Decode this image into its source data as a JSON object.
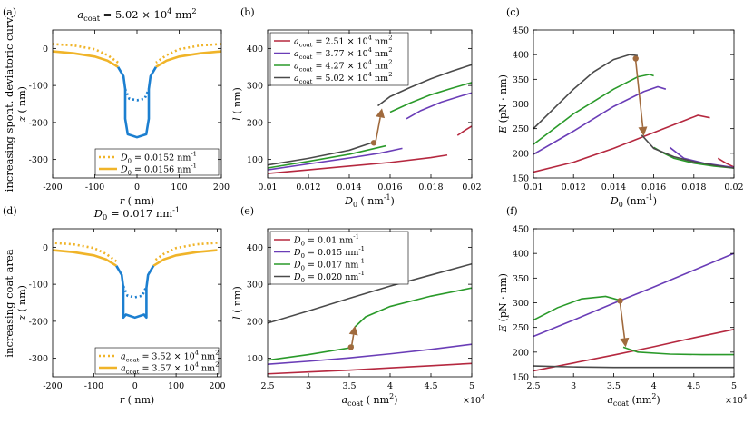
{
  "row_labels": [
    "increasing spont. deviatoric curv.",
    "increasing coat area"
  ],
  "colors": {
    "red": "#b5283f",
    "purple": "#6a3db7",
    "green": "#2a9a2a",
    "dark": "#4a4a4a",
    "blue": "#1c7fd0",
    "gold": "#f0b429",
    "arrow": "#a06a3d"
  },
  "chart_data": [
    {
      "panel": "(a)",
      "type": "line",
      "title": "a_coat = 5.02 × 10^4 nm^2",
      "xlabel": "r ( nm)",
      "ylabel": "z ( nm)",
      "xlim": [
        -200,
        200
      ],
      "ylim": [
        -350,
        50
      ],
      "xticks": [
        "-200",
        "-100",
        "0",
        "100",
        "200"
      ],
      "yticks": [
        "0",
        "-100",
        "-200",
        "-300"
      ],
      "legend": [
        {
          "label": "D_0 = 0.0152 nm^-1",
          "style": "dotted",
          "color": "#f0b429"
        },
        {
          "label": "D_0 = 0.0156 nm^-1",
          "style": "solid",
          "color": "#f0b429"
        }
      ],
      "legend_position": "bottom-right"
    },
    {
      "panel": "(b)",
      "type": "line",
      "xlabel": "D_0 ( nm^-1)",
      "ylabel": "l ( nm)",
      "xlim": [
        0.01,
        0.02
      ],
      "ylim": [
        50,
        450
      ],
      "xticks": [
        "0.01",
        "0.012",
        "0.014",
        "0.016",
        "0.018",
        "0.02"
      ],
      "yticks": [
        "100",
        "200",
        "300",
        "400"
      ],
      "series": [
        {
          "name": "a_coat = 2.51 × 10^4 nm^2",
          "color": "#b5283f",
          "segments": [
            {
              "x": [
                0.01,
                0.012,
                0.014,
                0.016,
                0.018,
                0.0188
              ],
              "y": [
                62,
                72,
                82,
                92,
                105,
                112
              ]
            },
            {
              "x": [
                0.0193,
                0.0197,
                0.02
              ],
              "y": [
                165,
                180,
                190
              ]
            }
          ]
        },
        {
          "name": "a_coat = 3.77 × 10^4 nm^2",
          "color": "#6a3db7",
          "segments": [
            {
              "x": [
                0.01,
                0.012,
                0.014,
                0.0155,
                0.0166
              ],
              "y": [
                72,
                88,
                104,
                117,
                130
              ]
            },
            {
              "x": [
                0.0168,
                0.0175,
                0.0185,
                0.0195,
                0.02
              ],
              "y": [
                210,
                232,
                255,
                272,
                280
              ]
            }
          ]
        },
        {
          "name": "a_coat = 4.27 × 10^4 nm^2",
          "color": "#2a9a2a",
          "segments": [
            {
              "x": [
                0.01,
                0.012,
                0.014,
                0.0158
              ],
              "y": [
                77,
                95,
                114,
                137
              ]
            },
            {
              "x": [
                0.016,
                0.017,
                0.018,
                0.019,
                0.02
              ],
              "y": [
                228,
                253,
                275,
                292,
                308
              ]
            }
          ]
        },
        {
          "name": "a_coat = 5.02 × 10^4 nm^2",
          "color": "#4a4a4a",
          "segments": [
            {
              "x": [
                0.01,
                0.012,
                0.014,
                0.0152
              ],
              "y": [
                85,
                103,
                125,
                147
              ]
            },
            {
              "x": [
                0.0154,
                0.016,
                0.017,
                0.018,
                0.019,
                0.02
              ],
              "y": [
                245,
                270,
                295,
                318,
                338,
                356
              ]
            }
          ]
        }
      ],
      "marker": {
        "x": 0.0152,
        "y": 145
      },
      "arrow": {
        "from": [
          0.0153,
          150
        ],
        "to": [
          0.0156,
          238
        ]
      },
      "legend_position": "top-left"
    },
    {
      "panel": "(c)",
      "type": "line",
      "xlabel": "D_0 (nm^-1)",
      "ylabel": "E (pN · nm)",
      "xlim": [
        0.01,
        0.02
      ],
      "ylim": [
        150,
        450
      ],
      "xticks": [
        "0.01",
        "0.012",
        "0.014",
        "0.016",
        "0.018",
        "0.02"
      ],
      "yticks": [
        "150",
        "200",
        "250",
        "300",
        "350",
        "400",
        "450"
      ],
      "series": [
        {
          "name": "a_coat = 2.51 × 10^4 nm^2",
          "color": "#b5283f",
          "segments": [
            {
              "x": [
                0.01,
                0.012,
                0.014,
                0.016,
                0.017,
                0.0182,
                0.0188
              ],
              "y": [
                162,
                182,
                210,
                242,
                258,
                277,
                272
              ]
            },
            {
              "x": [
                0.0192,
                0.0196,
                0.02
              ],
              "y": [
                190,
                180,
                172
              ]
            }
          ]
        },
        {
          "name": "a_coat = 3.77 × 10^4 nm^2",
          "color": "#6a3db7",
          "segments": [
            {
              "x": [
                0.01,
                0.012,
                0.014,
                0.0155,
                0.0162,
                0.0166
              ],
              "y": [
                198,
                245,
                295,
                325,
                335,
                330
              ]
            },
            {
              "x": [
                0.0168,
                0.0175,
                0.0185,
                0.0195,
                0.02
              ],
              "y": [
                212,
                190,
                180,
                174,
                171
              ]
            }
          ]
        },
        {
          "name": "a_coat = 4.27 × 10^4 nm^2",
          "color": "#2a9a2a",
          "segments": [
            {
              "x": [
                0.01,
                0.012,
                0.014,
                0.0152,
                0.0158,
                0.016
              ],
              "y": [
                218,
                280,
                330,
                355,
                360,
                357
              ]
            },
            {
              "x": [
                0.016,
                0.0165,
                0.017,
                0.018,
                0.019,
                0.02
              ],
              "y": [
                212,
                200,
                190,
                180,
                174,
                170
              ]
            }
          ]
        },
        {
          "name": "a_coat = 5.02 × 10^4 nm^2",
          "color": "#4a4a4a",
          "segments": [
            {
              "x": [
                0.01,
                0.011,
                0.012,
                0.013,
                0.014,
                0.0148,
                0.0152
              ],
              "y": [
                250,
                290,
                330,
                365,
                390,
                400,
                398
              ]
            },
            {
              "x": [
                0.0154,
                0.016,
                0.017,
                0.018,
                0.019,
                0.02
              ],
              "y": [
                237,
                210,
                193,
                183,
                176,
                170
              ]
            }
          ]
        }
      ],
      "marker": {
        "x": 0.0151,
        "y": 392
      },
      "arrow": {
        "from": [
          0.0151,
          388
        ],
        "to": [
          0.0155,
          235
        ]
      }
    },
    {
      "panel": "(d)",
      "type": "line",
      "title": "D_0 = 0.017 nm^-1",
      "xlabel": "r ( nm)",
      "ylabel": "z ( nm)",
      "xlim": [
        -200,
        210
      ],
      "ylim": [
        -350,
        50
      ],
      "xticks": [
        "-200",
        "-100",
        "0",
        "100",
        "200"
      ],
      "yticks": [
        "0",
        "-100",
        "-200",
        "-300"
      ],
      "legend": [
        {
          "label": "a_coat = 3.52 × 10^4 nm^2",
          "style": "dotted",
          "color": "#f0b429"
        },
        {
          "label": "a_coat = 3.57 × 10^4 nm^2",
          "style": "solid",
          "color": "#f0b429"
        }
      ],
      "legend_position": "bottom-right"
    },
    {
      "panel": "(e)",
      "type": "line",
      "xlabel": "a_coat ( nm^2)",
      "ylabel": "l ( nm)",
      "x_multiplier": "×10^4",
      "xlim": [
        2.5,
        5
      ],
      "ylim": [
        50,
        450
      ],
      "xticks": [
        "2.5",
        "3",
        "3.5",
        "4",
        "4.5",
        "5"
      ],
      "yticks": [
        "100",
        "200",
        "300",
        "400"
      ],
      "series": [
        {
          "name": "D_0 = 0.01 nm^-1",
          "color": "#b5283f",
          "segments": [
            {
              "x": [
                2.5,
                3,
                3.5,
                4,
                4.5,
                5
              ],
              "y": [
                58,
                63,
                68,
                74,
                80,
                86
              ]
            }
          ]
        },
        {
          "name": "D_0 = 0.015 nm^-1",
          "color": "#6a3db7",
          "segments": [
            {
              "x": [
                2.5,
                3,
                3.5,
                4,
                4.5,
                5
              ],
              "y": [
                84,
                92,
                101,
                112,
                124,
                138
              ]
            }
          ]
        },
        {
          "name": "D_0 = 0.017 nm^-1",
          "color": "#2a9a2a",
          "segments": [
            {
              "x": [
                2.5,
                3,
                3.5,
                3.55
              ],
              "y": [
                95,
                110,
                128,
                135
              ]
            },
            {
              "x": [
                3.57,
                3.7,
                4,
                4.5,
                5
              ],
              "y": [
                185,
                212,
                240,
                268,
                290
              ]
            }
          ]
        },
        {
          "name": "D_0 = 0.020 nm^-1",
          "color": "#4a4a4a",
          "segments": [
            {
              "x": [
                2.5,
                3,
                3.5,
                4,
                4.5,
                5
              ],
              "y": [
                195,
                228,
                262,
                295,
                325,
                355
              ]
            }
          ]
        }
      ],
      "marker": {
        "x": 3.52,
        "y": 130
      },
      "arrow": {
        "from": [
          3.53,
          135
        ],
        "to": [
          3.57,
          188
        ]
      },
      "legend_position": "top-left"
    },
    {
      "panel": "(f)",
      "type": "line",
      "xlabel": "a_coat (nm^2)",
      "ylabel": "E (pN · nm)",
      "x_multiplier": "×10^4",
      "xlim": [
        2.5,
        5
      ],
      "ylim": [
        150,
        450
      ],
      "xticks": [
        "2.5",
        "3",
        "3.5",
        "4",
        "4.5",
        "5"
      ],
      "yticks": [
        "150",
        "200",
        "250",
        "300",
        "350",
        "400",
        "450"
      ],
      "series": [
        {
          "name": "D_0 = 0.01 nm^-1",
          "color": "#b5283f",
          "segments": [
            {
              "x": [
                2.5,
                3,
                3.5,
                4,
                4.5,
                5
              ],
              "y": [
                162,
                178,
                194,
                211,
                229,
                246
              ]
            }
          ]
        },
        {
          "name": "D_0 = 0.015 nm^-1",
          "color": "#6a3db7",
          "segments": [
            {
              "x": [
                2.5,
                3,
                3.5,
                4,
                4.5,
                5
              ],
              "y": [
                232,
                265,
                299,
                332,
                366,
                400
              ]
            }
          ]
        },
        {
          "name": "D_0 = 0.017 nm^-1",
          "color": "#2a9a2a",
          "segments": [
            {
              "x": [
                2.5,
                2.8,
                3.1,
                3.4,
                3.6
              ],
              "y": [
                265,
                290,
                308,
                313,
                304
              ]
            },
            {
              "x": [
                3.62,
                3.8,
                4.2,
                4.6,
                5
              ],
              "y": [
                210,
                200,
                196,
                195,
                195
              ]
            }
          ]
        },
        {
          "name": "D_0 = 0.020 nm^-1",
          "color": "#4a4a4a",
          "segments": [
            {
              "x": [
                2.5,
                3,
                3.5,
                4,
                4.5,
                5
              ],
              "y": [
                172,
                170,
                169,
                169,
                169,
                169
              ]
            }
          ]
        }
      ],
      "marker": {
        "x": 3.58,
        "y": 304
      },
      "arrow": {
        "from": [
          3.58,
          300
        ],
        "to": [
          3.65,
          210
        ]
      }
    }
  ]
}
